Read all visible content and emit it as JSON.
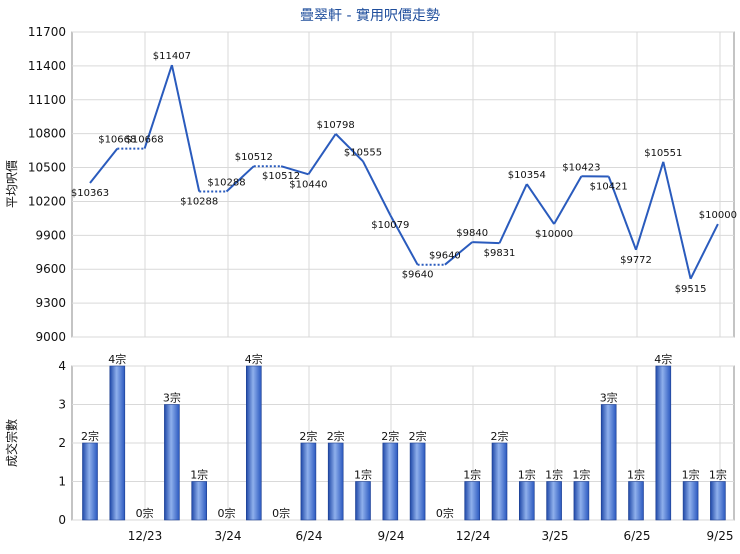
{
  "title": "疊翠軒 - 實用呎價走勢",
  "chart_data": [
    {
      "type": "line",
      "ylabel": "平均呎價",
      "ylim": [
        9000,
        11700
      ],
      "yticks": [
        9000,
        9300,
        9600,
        9900,
        10200,
        10500,
        10800,
        11100,
        11400,
        11700
      ],
      "values": [
        10363,
        10668,
        10668,
        11407,
        10288,
        10288,
        10512,
        10512,
        10440,
        10798,
        10555,
        10079,
        9640,
        9640,
        9840,
        9831,
        10354,
        10000,
        10423,
        10421,
        9772,
        10551,
        9515,
        10000
      ],
      "labels": [
        "$10363",
        "$10668",
        "$10668",
        "$11407",
        "$10288",
        "$10288",
        "$10512",
        "$10512",
        "$10440",
        "$10798",
        "$10555",
        "$10079",
        "$9640",
        "$9640",
        "$9840",
        "$9831",
        "$10354",
        "$10000",
        "$10423",
        "$10421",
        "$9772",
        "$10551",
        "$9515",
        "$10000"
      ],
      "carried": [
        false,
        false,
        true,
        false,
        false,
        true,
        false,
        true,
        false,
        false,
        false,
        false,
        false,
        true,
        false,
        false,
        false,
        false,
        false,
        false,
        false,
        false,
        false,
        false
      ],
      "grid": true,
      "line_color": "#2a5bbd"
    },
    {
      "type": "bar",
      "ylabel": "成交宗數",
      "ylim": [
        0,
        4
      ],
      "yticks": [
        0,
        1,
        2,
        3,
        4
      ],
      "values": [
        2,
        4,
        0,
        3,
        1,
        0,
        4,
        0,
        2,
        2,
        1,
        2,
        2,
        0,
        1,
        2,
        1,
        1,
        1,
        3,
        1,
        4,
        1,
        1
      ],
      "labels": [
        "2宗",
        "4宗",
        "0宗",
        "3宗",
        "1宗",
        "0宗",
        "4宗",
        "0宗",
        "2宗",
        "2宗",
        "1宗",
        "2宗",
        "2宗",
        "0宗",
        "1宗",
        "2宗",
        "1宗",
        "1宗",
        "1宗",
        "3宗",
        "1宗",
        "4宗",
        "1宗",
        "1宗"
      ],
      "x_tick_labels": [
        "12/23",
        "3/24",
        "6/24",
        "9/24",
        "12/24",
        "3/25",
        "6/25",
        "9/25"
      ],
      "x_tick_index": [
        2,
        5,
        8,
        11,
        14,
        17,
        20,
        23
      ],
      "grid": true,
      "bar_color": "#3b6fd4"
    }
  ]
}
